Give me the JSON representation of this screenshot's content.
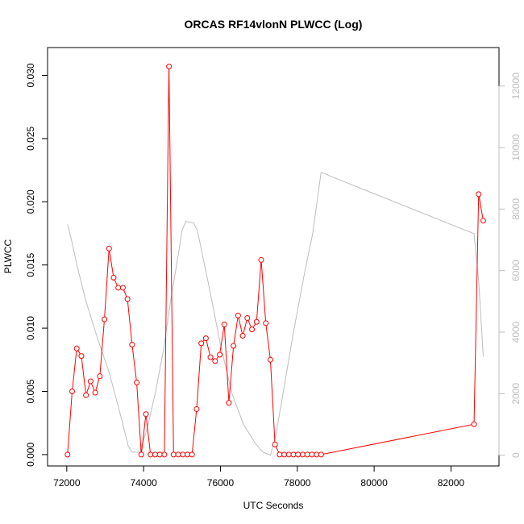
{
  "chart_data": {
    "type": "line",
    "title": "ORCAS RF14vlonN PLWCC (Log)",
    "xlabel": "UTC Seconds",
    "ylabel": "PLWCC",
    "xlim": [
      71500,
      83250
    ],
    "ylim": [
      -0.0009,
      0.0322
    ],
    "y2lim": [
      -350,
      13250
    ],
    "xticks": [
      72000,
      74000,
      76000,
      78000,
      80000,
      82000
    ],
    "xtick_labels": [
      "72000",
      "74000",
      "76000",
      "78000",
      "80000",
      "82000"
    ],
    "yticks": [
      0,
      0.005,
      0.01,
      0.015,
      0.02,
      0.025,
      0.03
    ],
    "ytick_labels": [
      "0.000",
      "0.005",
      "0.010",
      "0.015",
      "0.020",
      "0.025",
      "0.030"
    ],
    "y2ticks": [
      0,
      2000,
      4000,
      6000,
      8000,
      10000,
      12000
    ],
    "y2tick_labels": [
      "0",
      "2000",
      "4000",
      "6000",
      "8000",
      "10000",
      "12000"
    ],
    "grid": false,
    "colors": {
      "primary": "#ff0000",
      "secondary": "#bdbdbd",
      "frame": "#000000"
    },
    "series": [
      {
        "axis": "left",
        "style": "line+circle",
        "x": [
          72020,
          72140,
          72260,
          72380,
          72500,
          72620,
          72740,
          72860,
          72980,
          73100,
          73220,
          73340,
          73460,
          73580,
          73700,
          73820,
          73940,
          74060,
          74180,
          74300,
          74420,
          74540,
          74660,
          74780,
          74900,
          75020,
          75140,
          75260,
          75380,
          75500,
          75620,
          75740,
          75860,
          75980,
          76100,
          76220,
          76340,
          76460,
          76580,
          76700,
          76820,
          76940,
          77060,
          77180,
          77300,
          77420,
          77540,
          77660,
          77780,
          77900,
          78020,
          78140,
          78260,
          78380,
          78500,
          78620,
          82600,
          82720,
          82840
        ],
        "y": [
          0.0,
          0.005,
          0.0084,
          0.0078,
          0.0047,
          0.0058,
          0.0049,
          0.0062,
          0.0107,
          0.0163,
          0.014,
          0.0132,
          0.0132,
          0.0123,
          0.0087,
          0.0057,
          0.0,
          0.0032,
          0.0,
          0.0,
          0.0,
          0.0,
          0.0307,
          0.0,
          0.0,
          0.0,
          0.0,
          0.0,
          0.0036,
          0.0088,
          0.0092,
          0.0077,
          0.0074,
          0.0079,
          0.0103,
          0.0041,
          0.0086,
          0.011,
          0.0094,
          0.0108,
          0.0099,
          0.0105,
          0.0154,
          0.0104,
          0.0075,
          0.0008,
          0.0,
          0.0,
          0.0,
          0.0,
          0.0,
          0.0,
          0.0,
          0.0,
          0.0,
          0.0,
          0.0024,
          0.0206,
          0.0185
        ]
      },
      {
        "axis": "right",
        "style": "line",
        "x": [
          72020,
          72140,
          72260,
          72500,
          72800,
          73100,
          73400,
          73600,
          73700,
          73900,
          74100,
          74300,
          74500,
          74700,
          74900,
          75000,
          75100,
          75300,
          75400,
          75700,
          76000,
          76300,
          76600,
          76900,
          77100,
          77300,
          77450,
          77600,
          77900,
          78200,
          78400,
          78620,
          79000,
          80000,
          81000,
          82000,
          82600,
          82720,
          82840
        ],
        "y": [
          7500,
          6900,
          6200,
          5000,
          3800,
          2700,
          1300,
          300,
          100,
          100,
          900,
          2000,
          3300,
          5000,
          6500,
          7300,
          7600,
          7550,
          7300,
          5500,
          3600,
          2000,
          1000,
          400,
          100,
          0,
          700,
          1800,
          4000,
          6000,
          7200,
          9200,
          9000,
          8500,
          8000,
          7500,
          7200,
          5700,
          3200
        ]
      }
    ]
  }
}
